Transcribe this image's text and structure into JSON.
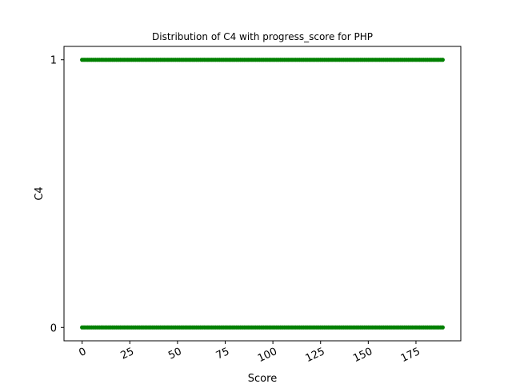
{
  "chart_data": {
    "type": "scatter",
    "title": "Distribution of C4 with progress_score for PHP",
    "xlabel": "Score",
    "ylabel": "C4",
    "xlim": [
      -9.5,
      198.5
    ],
    "ylim": [
      -0.05,
      1.05
    ],
    "xticks": [
      0,
      25,
      50,
      75,
      100,
      125,
      150,
      175
    ],
    "xtick_labels": [
      "0",
      "25",
      "50",
      "75",
      "100",
      "125",
      "150",
      "175"
    ],
    "yticks": [
      0,
      1
    ],
    "ytick_labels": [
      "0",
      "1"
    ],
    "x_tick_rotation": "rotated",
    "grid": false,
    "series": [
      {
        "color": "#008000",
        "x_range": [
          0,
          189
        ],
        "y_levels": [
          0,
          1
        ]
      }
    ]
  }
}
